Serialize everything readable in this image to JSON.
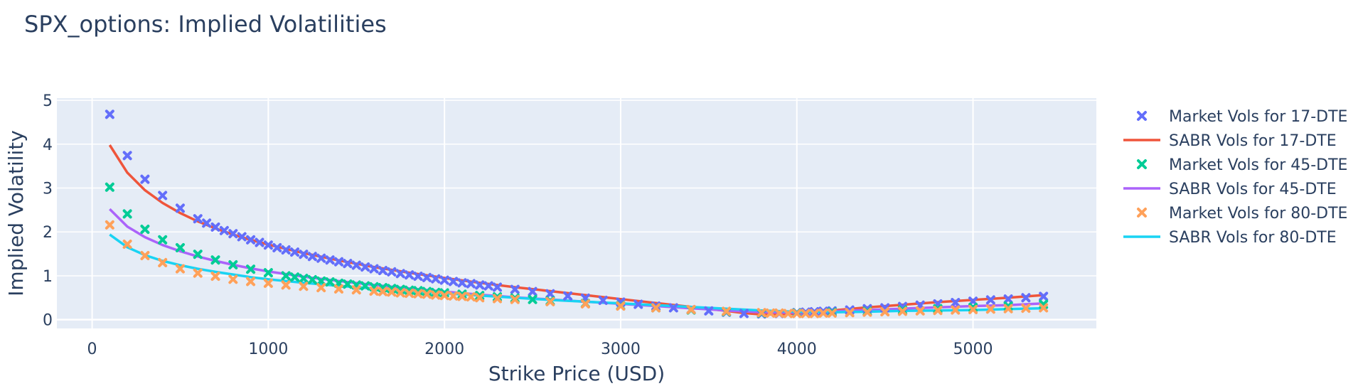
{
  "colors": {
    "plot_bg": "#e5ecf6",
    "grid": "#ffffff",
    "text": "#2a3f5f"
  },
  "chart_data": {
    "type": "scatter",
    "title": "SPX_options: Implied Volatilities",
    "xlabel": "Strike Price (USD)",
    "ylabel": "Implied Volatility",
    "xlim": [
      -200,
      5700
    ],
    "ylim": [
      -0.2,
      5.05
    ],
    "xticks": [
      0,
      1000,
      2000,
      3000,
      4000,
      5000
    ],
    "xtick_labels": [
      "0",
      "1000",
      "2000",
      "3000",
      "4000",
      "5000"
    ],
    "yticks": [
      0,
      1,
      2,
      3,
      4,
      5
    ],
    "ytick_labels": [
      "0",
      "1",
      "2",
      "3",
      "4",
      "5"
    ],
    "grid": true,
    "legend_position": "right",
    "series": [
      {
        "name": "Market Vols for 17-DTE",
        "mode": "markers",
        "marker": "x",
        "color": "#636efa",
        "x": [
          100,
          200,
          300,
          400,
          500,
          600,
          650,
          700,
          750,
          800,
          850,
          900,
          950,
          1000,
          1050,
          1100,
          1150,
          1200,
          1250,
          1300,
          1350,
          1400,
          1450,
          1500,
          1550,
          1600,
          1650,
          1700,
          1750,
          1800,
          1850,
          1900,
          1950,
          2000,
          2050,
          2100,
          2150,
          2200,
          2250,
          2300,
          2400,
          2500,
          2600,
          2700,
          2800,
          2900,
          3000,
          3100,
          3200,
          3300,
          3400,
          3500,
          3600,
          3700,
          3800,
          3900,
          4000,
          4050,
          4100,
          4150,
          4200,
          4300,
          4400,
          4500,
          4600,
          4700,
          4800,
          4900,
          5000,
          5100,
          5200,
          5300,
          5400
        ],
        "y": [
          4.68,
          3.74,
          3.2,
          2.83,
          2.54,
          2.3,
          2.2,
          2.11,
          2.03,
          1.96,
          1.89,
          1.82,
          1.76,
          1.7,
          1.64,
          1.59,
          1.54,
          1.49,
          1.44,
          1.4,
          1.36,
          1.32,
          1.28,
          1.24,
          1.2,
          1.16,
          1.12,
          1.09,
          1.05,
          1.02,
          0.99,
          0.96,
          0.93,
          0.9,
          0.87,
          0.84,
          0.82,
          0.79,
          0.77,
          0.74,
          0.69,
          0.64,
          0.59,
          0.54,
          0.49,
          0.44,
          0.4,
          0.35,
          0.31,
          0.27,
          0.23,
          0.2,
          0.17,
          0.14,
          0.13,
          0.14,
          0.16,
          0.17,
          0.18,
          0.19,
          0.2,
          0.22,
          0.25,
          0.27,
          0.3,
          0.33,
          0.36,
          0.39,
          0.42,
          0.45,
          0.47,
          0.5,
          0.53
        ]
      },
      {
        "name": "SABR Vols for 17-DTE",
        "mode": "lines",
        "color": "#ef553b",
        "x": [
          100,
          200,
          300,
          400,
          500,
          600,
          700,
          800,
          900,
          1000,
          1200,
          1400,
          1600,
          1800,
          2000,
          2200,
          2400,
          2600,
          2800,
          3000,
          3200,
          3400,
          3600,
          3700,
          3800,
          3900,
          4000,
          4200,
          4400,
          4600,
          4800,
          5000,
          5200,
          5400
        ],
        "y": [
          3.98,
          3.35,
          2.95,
          2.66,
          2.43,
          2.24,
          2.08,
          1.94,
          1.82,
          1.71,
          1.52,
          1.35,
          1.2,
          1.07,
          0.95,
          0.84,
          0.74,
          0.65,
          0.56,
          0.47,
          0.38,
          0.29,
          0.2,
          0.15,
          0.12,
          0.12,
          0.14,
          0.21,
          0.28,
          0.34,
          0.4,
          0.45,
          0.5,
          0.56
        ]
      },
      {
        "name": "Market Vols for 45-DTE",
        "mode": "markers",
        "marker": "x",
        "color": "#00cc96",
        "x": [
          100,
          200,
          300,
          400,
          500,
          600,
          700,
          800,
          900,
          1000,
          1100,
          1150,
          1200,
          1250,
          1300,
          1350,
          1400,
          1450,
          1500,
          1550,
          1600,
          1650,
          1700,
          1750,
          1800,
          1850,
          1900,
          1950,
          2000,
          2100,
          2200,
          2300,
          2400,
          2500,
          2600,
          2800,
          3000,
          3200,
          3400,
          3600,
          3800,
          4000,
          4200,
          4400,
          4600,
          4800,
          5000,
          5200,
          5400
        ],
        "y": [
          3.02,
          2.41,
          2.06,
          1.82,
          1.64,
          1.49,
          1.36,
          1.25,
          1.15,
          1.07,
          1.0,
          0.97,
          0.94,
          0.91,
          0.88,
          0.86,
          0.83,
          0.81,
          0.79,
          0.77,
          0.75,
          0.73,
          0.71,
          0.69,
          0.67,
          0.66,
          0.64,
          0.62,
          0.61,
          0.58,
          0.55,
          0.52,
          0.49,
          0.46,
          0.43,
          0.37,
          0.32,
          0.27,
          0.22,
          0.18,
          0.15,
          0.15,
          0.17,
          0.19,
          0.22,
          0.25,
          0.28,
          0.31,
          0.35
        ]
      },
      {
        "name": "SABR Vols for 45-DTE",
        "mode": "lines",
        "color": "#ab63fa",
        "x": [
          100,
          200,
          300,
          400,
          500,
          600,
          700,
          800,
          900,
          1000,
          1200,
          1400,
          1600,
          1800,
          2000,
          2200,
          2400,
          2600,
          2800,
          3000,
          3200,
          3400,
          3600,
          3800,
          4000,
          4200,
          4400,
          4600,
          4800,
          5000,
          5200,
          5400
        ],
        "y": [
          2.52,
          2.12,
          1.88,
          1.7,
          1.56,
          1.44,
          1.34,
          1.25,
          1.17,
          1.1,
          0.98,
          0.88,
          0.79,
          0.71,
          0.64,
          0.57,
          0.51,
          0.46,
          0.41,
          0.36,
          0.31,
          0.26,
          0.21,
          0.17,
          0.16,
          0.19,
          0.22,
          0.25,
          0.28,
          0.31,
          0.33,
          0.37
        ]
      },
      {
        "name": "Market Vols for 80-DTE",
        "mode": "markers",
        "marker": "x",
        "color": "#ffa15a",
        "x": [
          100,
          200,
          300,
          400,
          500,
          600,
          700,
          800,
          900,
          1000,
          1100,
          1200,
          1300,
          1400,
          1500,
          1600,
          1650,
          1700,
          1750,
          1800,
          1850,
          1900,
          1950,
          2000,
          2050,
          2100,
          2150,
          2200,
          2300,
          2400,
          2600,
          2800,
          3000,
          3200,
          3400,
          3600,
          3800,
          3850,
          3900,
          3950,
          4000,
          4050,
          4100,
          4150,
          4200,
          4300,
          4400,
          4500,
          4600,
          4700,
          4800,
          4900,
          5000,
          5100,
          5200,
          5300,
          5400
        ],
        "y": [
          2.16,
          1.72,
          1.46,
          1.3,
          1.16,
          1.06,
          0.99,
          0.92,
          0.87,
          0.83,
          0.79,
          0.76,
          0.73,
          0.7,
          0.68,
          0.65,
          0.64,
          0.63,
          0.61,
          0.6,
          0.59,
          0.58,
          0.56,
          0.55,
          0.54,
          0.53,
          0.52,
          0.5,
          0.48,
          0.46,
          0.41,
          0.36,
          0.31,
          0.27,
          0.23,
          0.19,
          0.16,
          0.15,
          0.15,
          0.14,
          0.14,
          0.14,
          0.14,
          0.15,
          0.15,
          0.16,
          0.17,
          0.18,
          0.19,
          0.2,
          0.21,
          0.22,
          0.23,
          0.24,
          0.25,
          0.26,
          0.27
        ]
      },
      {
        "name": "SABR Vols for 80-DTE",
        "mode": "lines",
        "color": "#19d3f3",
        "x": [
          100,
          200,
          300,
          400,
          500,
          600,
          700,
          800,
          900,
          1000,
          1200,
          1400,
          1600,
          1800,
          2000,
          2200,
          2400,
          2600,
          2800,
          3000,
          3200,
          3400,
          3600,
          3800,
          4000,
          4200,
          4400,
          4600,
          4800,
          5000,
          5200,
          5400
        ],
        "y": [
          1.94,
          1.65,
          1.47,
          1.34,
          1.24,
          1.16,
          1.09,
          1.03,
          0.97,
          0.92,
          0.84,
          0.77,
          0.71,
          0.65,
          0.6,
          0.55,
          0.5,
          0.45,
          0.41,
          0.37,
          0.33,
          0.29,
          0.25,
          0.21,
          0.18,
          0.17,
          0.18,
          0.2,
          0.21,
          0.22,
          0.24,
          0.26
        ]
      }
    ]
  }
}
